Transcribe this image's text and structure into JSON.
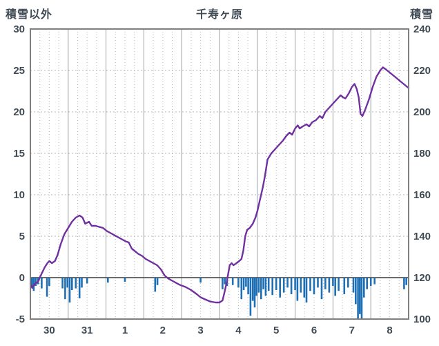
{
  "header": {
    "left_axis_title": "積雪以外",
    "title": "千寿ヶ原",
    "right_axis_title": "積雪"
  },
  "chart_data": {
    "type": "line+bar",
    "title": "千寿ヶ原",
    "left_axis": {
      "label": "積雪以外",
      "min": -5,
      "max": 30,
      "ticks": [
        30,
        25,
        20,
        15,
        10,
        5,
        0,
        -5
      ]
    },
    "right_axis": {
      "label": "積雪",
      "min": 100,
      "max": 240,
      "ticks": [
        240,
        220,
        200,
        180,
        160,
        140,
        120,
        100
      ]
    },
    "x_axis": {
      "labels": [
        "30",
        "31",
        "1",
        "2",
        "3",
        "4",
        "5",
        "6",
        "7",
        "8"
      ],
      "min": 0,
      "max": 10
    },
    "style": {
      "line_color": "#7030A0",
      "bar_color": "#1F6FB5",
      "grid_color": "#b5b5b5",
      "day_grid_color": "#9aa0a6",
      "border_color": "#7f7f7f",
      "zero_line_color": "#3c3c3c",
      "text_color": "#3f4a54"
    },
    "series": [
      {
        "name": "積雪",
        "type": "line",
        "axis": "right",
        "color": "#7030A0",
        "points": [
          [
            0,
            117
          ],
          [
            0.05,
            115
          ],
          [
            0.12,
            117
          ],
          [
            0.2,
            118
          ],
          [
            0.3,
            122
          ],
          [
            0.38,
            125
          ],
          [
            0.45,
            127
          ],
          [
            0.5,
            128
          ],
          [
            0.57,
            127
          ],
          [
            0.65,
            128
          ],
          [
            0.72,
            131
          ],
          [
            0.8,
            136
          ],
          [
            0.9,
            141
          ],
          [
            1.0,
            144
          ],
          [
            1.1,
            147
          ],
          [
            1.2,
            149
          ],
          [
            1.3,
            150
          ],
          [
            1.38,
            149
          ],
          [
            1.45,
            146
          ],
          [
            1.55,
            147
          ],
          [
            1.62,
            145
          ],
          [
            1.72,
            145
          ],
          [
            1.82,
            144.5
          ],
          [
            1.92,
            144
          ],
          [
            2.02,
            142.5
          ],
          [
            2.12,
            141.5
          ],
          [
            2.22,
            140.5
          ],
          [
            2.32,
            139.5
          ],
          [
            2.42,
            138.5
          ],
          [
            2.52,
            137.5
          ],
          [
            2.6,
            137
          ],
          [
            2.68,
            134
          ],
          [
            2.75,
            133
          ],
          [
            2.85,
            131.5
          ],
          [
            2.95,
            130.5
          ],
          [
            3.05,
            129
          ],
          [
            3.15,
            128
          ],
          [
            3.25,
            127
          ],
          [
            3.35,
            126
          ],
          [
            3.45,
            124
          ],
          [
            3.55,
            121
          ],
          [
            3.65,
            119.5
          ],
          [
            3.8,
            118
          ],
          [
            3.95,
            116.5
          ],
          [
            4.1,
            115.5
          ],
          [
            4.25,
            114
          ],
          [
            4.4,
            112
          ],
          [
            4.5,
            110.5
          ],
          [
            4.62,
            109.5
          ],
          [
            4.75,
            108.5
          ],
          [
            4.9,
            108
          ],
          [
            5.0,
            108
          ],
          [
            5.08,
            109
          ],
          [
            5.12,
            112
          ],
          [
            5.17,
            116
          ],
          [
            5.22,
            121
          ],
          [
            5.27,
            126
          ],
          [
            5.32,
            127
          ],
          [
            5.37,
            126
          ],
          [
            5.45,
            127
          ],
          [
            5.52,
            128
          ],
          [
            5.58,
            129
          ],
          [
            5.63,
            133
          ],
          [
            5.68,
            140
          ],
          [
            5.73,
            143
          ],
          [
            5.8,
            144
          ],
          [
            5.88,
            146
          ],
          [
            5.95,
            149
          ],
          [
            6.0,
            152
          ],
          [
            6.05,
            156
          ],
          [
            6.1,
            160
          ],
          [
            6.15,
            164
          ],
          [
            6.2,
            169
          ],
          [
            6.27,
            177
          ],
          [
            6.37,
            180
          ],
          [
            6.47,
            182
          ],
          [
            6.57,
            184
          ],
          [
            6.67,
            186
          ],
          [
            6.77,
            188.5
          ],
          [
            6.85,
            190
          ],
          [
            6.92,
            189
          ],
          [
            7.0,
            192
          ],
          [
            7.07,
            193.5
          ],
          [
            7.12,
            192
          ],
          [
            7.2,
            193
          ],
          [
            7.3,
            194
          ],
          [
            7.37,
            193
          ],
          [
            7.45,
            195
          ],
          [
            7.55,
            196
          ],
          [
            7.65,
            198
          ],
          [
            7.72,
            197
          ],
          [
            7.8,
            200
          ],
          [
            7.9,
            202
          ],
          [
            8.0,
            204
          ],
          [
            8.1,
            206
          ],
          [
            8.2,
            208
          ],
          [
            8.27,
            207
          ],
          [
            8.33,
            206.5
          ],
          [
            8.42,
            209
          ],
          [
            8.5,
            212
          ],
          [
            8.57,
            213.5
          ],
          [
            8.63,
            211
          ],
          [
            8.68,
            207
          ],
          [
            8.73,
            199
          ],
          [
            8.78,
            198
          ],
          [
            8.85,
            201
          ],
          [
            8.95,
            206
          ],
          [
            9.05,
            212
          ],
          [
            9.15,
            217
          ],
          [
            9.25,
            220
          ],
          [
            9.32,
            221.5
          ],
          [
            9.4,
            220.5
          ],
          [
            9.5,
            219
          ],
          [
            9.6,
            217.5
          ],
          [
            9.7,
            216
          ],
          [
            9.8,
            214.5
          ],
          [
            9.9,
            213
          ],
          [
            10,
            211.5
          ]
        ]
      },
      {
        "name": "積雪以外",
        "type": "bar",
        "axis": "left",
        "color": "#1F6FB5",
        "points": [
          [
            0.04,
            -1.2
          ],
          [
            0.09,
            -1.6
          ],
          [
            0.14,
            -1.0
          ],
          [
            0.2,
            -0.8
          ],
          [
            0.3,
            -1.3
          ],
          [
            0.44,
            -2.3
          ],
          [
            0.5,
            -1.0
          ],
          [
            0.85,
            -1.3
          ],
          [
            0.92,
            -2.6
          ],
          [
            0.98,
            -1.2
          ],
          [
            1.04,
            -3.0
          ],
          [
            1.1,
            -1.5
          ],
          [
            1.2,
            -1.3
          ],
          [
            1.3,
            -2.5
          ],
          [
            1.36,
            -1.2
          ],
          [
            1.5,
            -0.7
          ],
          [
            2.05,
            -0.6
          ],
          [
            2.5,
            -0.5
          ],
          [
            3.3,
            -1.7
          ],
          [
            3.36,
            -0.9
          ],
          [
            4.5,
            -0.6
          ],
          [
            5.08,
            -1.4
          ],
          [
            5.14,
            -0.8
          ],
          [
            5.2,
            -1.0
          ],
          [
            5.35,
            -0.9
          ],
          [
            5.5,
            -1.2
          ],
          [
            5.58,
            -2.6
          ],
          [
            5.64,
            -1.5
          ],
          [
            5.7,
            -1.1
          ],
          [
            5.76,
            -2.0
          ],
          [
            5.82,
            -4.6
          ],
          [
            5.88,
            -2.8
          ],
          [
            5.93,
            -3.6
          ],
          [
            5.98,
            -2.2
          ],
          [
            6.04,
            -1.8
          ],
          [
            6.1,
            -2.6
          ],
          [
            6.16,
            -1.4
          ],
          [
            6.22,
            -2.2
          ],
          [
            6.3,
            -1.6
          ],
          [
            6.4,
            -2.1
          ],
          [
            6.5,
            -1.5
          ],
          [
            6.6,
            -2.4
          ],
          [
            6.7,
            -1.8
          ],
          [
            6.8,
            -1.2
          ],
          [
            6.9,
            -2.0
          ],
          [
            7.0,
            -1.5
          ],
          [
            7.06,
            -2.8
          ],
          [
            7.15,
            -1.8
          ],
          [
            7.24,
            -2.4
          ],
          [
            7.3,
            -3.0
          ],
          [
            7.4,
            -1.6
          ],
          [
            7.5,
            -2.0
          ],
          [
            7.6,
            -1.2
          ],
          [
            7.7,
            -2.6
          ],
          [
            7.8,
            -1.4
          ],
          [
            7.9,
            -1.8
          ],
          [
            8.0,
            -1.0
          ],
          [
            8.06,
            -2.2
          ],
          [
            8.15,
            -1.6
          ],
          [
            8.3,
            -2.0
          ],
          [
            8.4,
            -1.2
          ],
          [
            8.54,
            -1.8
          ],
          [
            8.6,
            -3.2
          ],
          [
            8.66,
            -5.0
          ],
          [
            8.71,
            -4.4
          ],
          [
            8.76,
            -5.0
          ],
          [
            8.82,
            -2.4
          ],
          [
            8.9,
            -1.4
          ],
          [
            9.0,
            -1.0
          ],
          [
            9.1,
            -0.8
          ],
          [
            9.88,
            -1.4
          ],
          [
            9.94,
            -0.9
          ]
        ]
      }
    ]
  }
}
